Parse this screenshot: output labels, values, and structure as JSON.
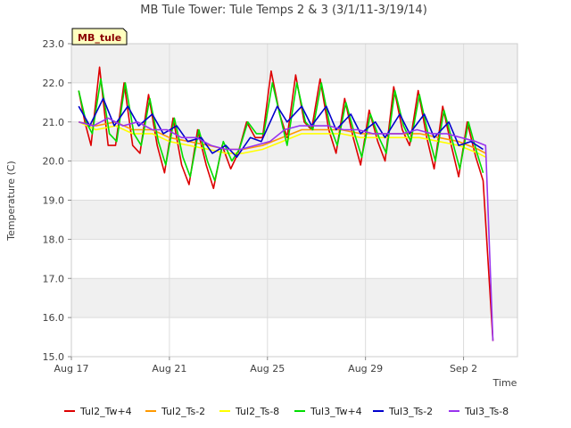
{
  "chart_data": {
    "type": "line",
    "title": "MB Tule Tower: Tule Temps 2 & 3 (3/1/11-3/19/14)",
    "badge": "MB_tule",
    "xlabel": "Time",
    "ylabel": "Temperature (C)",
    "xlim": [
      0.0,
      18.2
    ],
    "ylim": [
      15.0,
      23.0
    ],
    "yticks": [
      15.0,
      16.0,
      17.0,
      18.0,
      19.0,
      20.0,
      21.0,
      22.0,
      23.0
    ],
    "ytick_labels": [
      "15.0",
      "16.0",
      "17.0",
      "18.0",
      "19.0",
      "20.0",
      "21.0",
      "22.0",
      "23.0"
    ],
    "xticks": [
      0,
      4,
      8,
      12,
      16
    ],
    "xtick_labels": [
      "Aug 17",
      "Aug 21",
      "Aug 25",
      "Aug 29",
      "Sep 2"
    ],
    "x_unit": "days since Aug 17",
    "grid": true,
    "legend_position": "bottom",
    "series": [
      {
        "name": "Tul2_Tw+4",
        "color": "#dd0000",
        "x": [
          0.3,
          0.55,
          0.8,
          1.15,
          1.5,
          1.8,
          2.15,
          2.5,
          2.8,
          3.15,
          3.5,
          3.8,
          4.15,
          4.5,
          4.8,
          5.15,
          5.5,
          5.8,
          6.15,
          6.5,
          6.8,
          7.15,
          7.5,
          7.8,
          8.15,
          8.5,
          8.8,
          9.15,
          9.5,
          9.8,
          10.15,
          10.5,
          10.8,
          11.15,
          11.5,
          11.8,
          12.15,
          12.5,
          12.8,
          13.15,
          13.5,
          13.8,
          14.15,
          14.5,
          14.8,
          15.15,
          15.5,
          15.8,
          16.15,
          16.5,
          16.8,
          17.2
        ],
        "y": [
          21.8,
          21.0,
          20.4,
          22.4,
          20.4,
          20.4,
          22.0,
          20.4,
          20.2,
          21.7,
          20.4,
          19.7,
          21.1,
          19.9,
          19.4,
          20.8,
          19.9,
          19.3,
          20.4,
          19.8,
          20.2,
          21.0,
          20.6,
          20.6,
          22.3,
          21.2,
          20.6,
          22.2,
          21.0,
          20.8,
          22.1,
          20.8,
          20.2,
          21.6,
          20.6,
          19.9,
          21.3,
          20.5,
          20.0,
          21.9,
          20.8,
          20.4,
          21.8,
          20.6,
          19.8,
          21.4,
          20.4,
          19.6,
          21.0,
          20.1,
          19.5,
          15.4
        ]
      },
      {
        "name": "Tul2_Ts-2",
        "color": "#ff9900",
        "x": [
          0.3,
          1.0,
          1.8,
          2.5,
          3.3,
          4.0,
          4.8,
          5.6,
          6.3,
          7.0,
          7.8,
          8.6,
          9.4,
          10.2,
          11.0,
          11.8,
          12.6,
          13.4,
          14.2,
          15.0,
          15.8,
          16.6,
          16.9
        ],
        "y": [
          21.0,
          20.9,
          21.0,
          20.8,
          20.8,
          20.6,
          20.5,
          20.4,
          20.3,
          20.3,
          20.4,
          20.6,
          20.8,
          20.8,
          20.8,
          20.7,
          20.7,
          20.7,
          20.7,
          20.6,
          20.5,
          20.3,
          20.2
        ]
      },
      {
        "name": "Tul2_Ts-8",
        "color": "#ffff00",
        "x": [
          0.3,
          1.0,
          1.8,
          2.5,
          3.3,
          4.0,
          4.8,
          5.6,
          6.3,
          7.0,
          7.8,
          8.6,
          9.4,
          10.2,
          11.0,
          11.8,
          12.6,
          13.4,
          14.2,
          15.0,
          15.8,
          16.6,
          16.9
        ],
        "y": [
          21.0,
          20.8,
          20.9,
          20.7,
          20.7,
          20.5,
          20.4,
          20.3,
          20.2,
          20.2,
          20.3,
          20.5,
          20.7,
          20.7,
          20.7,
          20.6,
          20.6,
          20.6,
          20.6,
          20.5,
          20.4,
          20.2,
          20.1
        ]
      },
      {
        "name": "Tul3_Tw+4",
        "color": "#00dd00",
        "x": [
          0.3,
          0.6,
          0.85,
          1.2,
          1.55,
          1.85,
          2.2,
          2.55,
          2.85,
          3.2,
          3.55,
          3.85,
          4.2,
          4.55,
          4.85,
          5.2,
          5.55,
          5.85,
          6.2,
          6.55,
          6.85,
          7.2,
          7.55,
          7.85,
          8.2,
          8.5,
          8.8,
          9.2,
          9.55,
          9.85,
          10.2,
          10.55,
          10.85,
          11.2,
          11.55,
          11.85,
          12.2,
          12.55,
          12.85,
          13.2,
          13.55,
          13.85,
          14.2,
          14.55,
          14.85,
          15.2,
          15.55,
          15.85,
          16.2,
          16.55,
          16.8
        ],
        "y": [
          21.8,
          21.0,
          20.7,
          22.1,
          20.7,
          20.5,
          22.0,
          20.7,
          20.4,
          21.6,
          20.5,
          19.9,
          21.1,
          20.1,
          19.6,
          20.8,
          20.0,
          19.5,
          20.5,
          20.0,
          20.3,
          21.0,
          20.7,
          20.7,
          22.0,
          21.2,
          20.4,
          22.0,
          21.0,
          20.8,
          22.0,
          20.9,
          20.4,
          21.5,
          20.7,
          20.1,
          21.2,
          20.6,
          20.2,
          21.8,
          20.9,
          20.5,
          21.7,
          20.7,
          20.0,
          21.3,
          20.5,
          19.8,
          21.0,
          20.2,
          19.7
        ]
      },
      {
        "name": "Tul3_Ts-2",
        "color": "#0000cc",
        "x": [
          0.3,
          0.75,
          1.3,
          1.75,
          2.3,
          2.75,
          3.3,
          3.75,
          4.3,
          4.75,
          5.3,
          5.75,
          6.3,
          6.75,
          7.3,
          7.75,
          8.4,
          8.8,
          9.4,
          9.8,
          10.4,
          10.8,
          11.4,
          11.8,
          12.4,
          12.8,
          13.4,
          13.8,
          14.4,
          14.8,
          15.4,
          15.8,
          16.3,
          16.8
        ],
        "y": [
          21.4,
          20.9,
          21.6,
          20.9,
          21.4,
          20.9,
          21.2,
          20.7,
          20.9,
          20.5,
          20.6,
          20.2,
          20.4,
          20.1,
          20.6,
          20.5,
          21.4,
          21.0,
          21.4,
          20.9,
          21.4,
          20.8,
          21.2,
          20.7,
          21.0,
          20.6,
          21.2,
          20.7,
          21.2,
          20.6,
          21.0,
          20.4,
          20.5,
          20.3
        ]
      },
      {
        "name": "Tul3_Ts-8",
        "color": "#9933ee",
        "x": [
          0.3,
          0.9,
          1.5,
          2.1,
          2.7,
          3.3,
          3.9,
          4.5,
          5.1,
          5.7,
          6.3,
          6.9,
          7.5,
          8.1,
          8.7,
          9.3,
          9.9,
          10.5,
          11.1,
          11.7,
          12.3,
          12.9,
          13.5,
          14.1,
          14.7,
          15.3,
          15.9,
          16.5,
          16.9,
          17.2
        ],
        "y": [
          21.0,
          20.9,
          21.1,
          20.9,
          21.0,
          20.8,
          20.8,
          20.6,
          20.6,
          20.4,
          20.3,
          20.3,
          20.4,
          20.5,
          20.8,
          20.9,
          20.9,
          20.9,
          20.8,
          20.8,
          20.7,
          20.7,
          20.7,
          20.8,
          20.7,
          20.7,
          20.6,
          20.5,
          20.4,
          15.4
        ]
      }
    ]
  }
}
